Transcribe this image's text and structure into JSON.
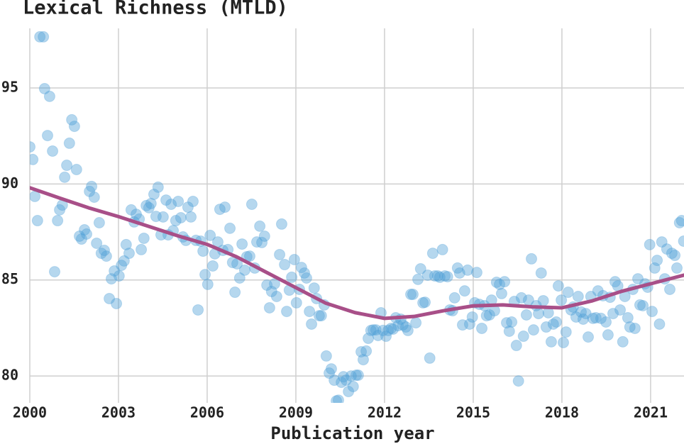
{
  "chart_data": {
    "type": "scatter",
    "title": "Lexical Richness (MTLD)",
    "xlabel": "Publication year",
    "x": [
      2000.0,
      2000.1,
      2000.17,
      2000.26,
      2000.34,
      2000.46,
      2000.5,
      2000.6,
      2000.67,
      2000.77,
      2000.84,
      2000.94,
      2001.01,
      2001.1,
      2001.18,
      2001.25,
      2001.34,
      2001.42,
      2001.51,
      2001.58,
      2001.68,
      2001.75,
      2001.85,
      2001.92,
      2002.02,
      2002.09,
      2002.18,
      2002.26,
      2002.35,
      2002.42,
      2002.52,
      2002.59,
      2002.69,
      2002.76,
      2002.86,
      2002.93,
      2003.02,
      2003.1,
      2003.19,
      2003.26,
      2003.36,
      2003.43,
      2003.53,
      2003.6,
      2003.7,
      2003.77,
      2003.86,
      2003.94,
      2004.03,
      2004.1,
      2004.2,
      2004.27,
      2004.34,
      2004.44,
      2004.51,
      2004.61,
      2004.68,
      2004.78,
      2004.85,
      2004.94,
      2005.02,
      2005.11,
      2005.18,
      2005.28,
      2005.35,
      2005.45,
      2005.52,
      2005.62,
      2005.69,
      2005.78,
      2005.86,
      2005.93,
      2006.02,
      2006.1,
      2006.19,
      2006.26,
      2006.36,
      2006.43,
      2006.53,
      2006.6,
      2006.7,
      2006.77,
      2006.86,
      2006.94,
      2007.01,
      2007.1,
      2007.18,
      2007.27,
      2007.34,
      2007.44,
      2007.51,
      2007.61,
      2007.68,
      2007.78,
      2007.85,
      2007.94,
      2008.02,
      2008.11,
      2008.18,
      2008.28,
      2008.35,
      2008.45,
      2008.52,
      2008.62,
      2008.69,
      2008.78,
      2008.86,
      2008.95,
      2009.02,
      2009.12,
      2009.19,
      2009.29,
      2009.36,
      2009.46,
      2009.53,
      2009.62,
      2009.7,
      2009.79,
      2009.86,
      2009.96,
      2010.03,
      2010.13,
      2010.2,
      2010.3,
      2010.37,
      2010.44,
      2010.54,
      2010.61,
      2010.7,
      2010.78,
      2010.87,
      2010.94,
      2011.04,
      2011.11,
      2011.21,
      2011.28,
      2011.38,
      2011.45,
      2011.54,
      2011.62,
      2011.71,
      2011.78,
      2011.88,
      2011.95,
      2012.05,
      2012.12,
      2012.22,
      2012.29,
      2012.38,
      2012.46,
      2012.55,
      2012.62,
      2012.72,
      2012.79,
      2012.89,
      2012.96,
      2013.06,
      2013.13,
      2013.22,
      2013.3,
      2013.37,
      2013.46,
      2013.53,
      2013.63,
      2013.7,
      2013.8,
      2013.87,
      2013.96,
      2014.04,
      2014.13,
      2014.21,
      2014.3,
      2014.37,
      2014.47,
      2014.54,
      2014.64,
      2014.71,
      2014.81,
      2014.88,
      2014.97,
      2015.05,
      2015.12,
      2015.21,
      2015.29,
      2015.38,
      2015.45,
      2015.55,
      2015.62,
      2015.72,
      2015.79,
      2015.89,
      2015.96,
      2016.06,
      2016.13,
      2016.22,
      2016.3,
      2016.39,
      2016.46,
      2016.53,
      2016.63,
      2016.7,
      2016.8,
      2016.87,
      2016.97,
      2017.04,
      2017.13,
      2017.21,
      2017.3,
      2017.37,
      2017.47,
      2017.54,
      2017.64,
      2017.71,
      2017.81,
      2017.88,
      2017.98,
      2018.05,
      2018.14,
      2018.21,
      2018.31,
      2018.38,
      2018.48,
      2018.55,
      2018.65,
      2018.72,
      2018.81,
      2018.89,
      2018.98,
      2019.05,
      2019.15,
      2019.22,
      2019.32,
      2019.39,
      2019.49,
      2019.56,
      2019.63,
      2019.73,
      2019.8,
      2019.89,
      2019.97,
      2020.06,
      2020.13,
      2020.23,
      2020.3,
      2020.4,
      2020.47,
      2020.57,
      2020.64,
      2020.74,
      2020.81,
      2020.9,
      2020.97,
      2021.05,
      2021.14,
      2021.22,
      2021.3,
      2021.38,
      2021.48,
      2021.55,
      2021.65,
      2021.72,
      2021.82,
      2021.89,
      2021.98,
      2022.05,
      2022.12
    ],
    "values": [
      91.93,
      91.27,
      89.35,
      88.09,
      97.66,
      97.66,
      94.96,
      92.52,
      94.56,
      91.71,
      85.43,
      88.09,
      88.65,
      88.9,
      90.35,
      90.97,
      92.12,
      93.34,
      93.0,
      90.75,
      87.28,
      87.13,
      87.61,
      87.39,
      89.61,
      89.87,
      89.31,
      86.91,
      87.98,
      86.39,
      86.54,
      86.24,
      84.03,
      85.06,
      85.47,
      83.77,
      85.21,
      85.76,
      85.99,
      86.84,
      86.39,
      88.65,
      88.02,
      88.42,
      88.17,
      86.58,
      87.17,
      88.87,
      88.76,
      88.98,
      89.46,
      88.31,
      89.83,
      87.35,
      88.28,
      89.16,
      87.35,
      88.94,
      87.57,
      88.09,
      89.09,
      88.24,
      87.24,
      87.06,
      88.79,
      88.28,
      89.09,
      87.06,
      83.44,
      87.02,
      86.5,
      85.28,
      84.77,
      87.32,
      85.73,
      86.36,
      86.98,
      88.68,
      86.54,
      88.79,
      86.58,
      87.69,
      85.91,
      84.36,
      85.84,
      85.1,
      86.87,
      85.51,
      86.21,
      86.24,
      88.94,
      85.62,
      86.98,
      87.8,
      86.95,
      87.28,
      84.73,
      83.55,
      84.4,
      84.8,
      84.14,
      86.32,
      87.91,
      85.8,
      83.36,
      84.47,
      85.14,
      86.06,
      83.81,
      84.51,
      85.65,
      85.36,
      85.1,
      83.36,
      82.7,
      84.58,
      84.03,
      83.14,
      83.14,
      83.7,
      81.04,
      80.15,
      80.37,
      79.78,
      78.7,
      78.74,
      79.67,
      79.96,
      79.78,
      79.19,
      80.0,
      79.45,
      80.04,
      80.04,
      81.26,
      80.85,
      81.3,
      81.96,
      82.37,
      82.4,
      82.4,
      82.11,
      83.29,
      82.37,
      82.07,
      82.37,
      82.48,
      82.44,
      83.03,
      82.62,
      82.96,
      82.66,
      82.55,
      82.37,
      84.25,
      84.25,
      82.77,
      85.03,
      85.58,
      83.81,
      83.84,
      85.25,
      80.93,
      86.39,
      85.21,
      85.21,
      85.14,
      86.58,
      85.21,
      85.17,
      83.44,
      83.4,
      84.07,
      85.62,
      85.36,
      82.66,
      84.43,
      85.51,
      82.7,
      83.07,
      83.81,
      85.39,
      83.73,
      82.48,
      83.66,
      83.14,
      83.18,
      83.95,
      83.4,
      84.88,
      84.77,
      84.29,
      84.91,
      82.77,
      82.33,
      82.81,
      83.88,
      81.59,
      79.74,
      84.07,
      82.07,
      83.18,
      83.95,
      86.1,
      82.4,
      83.66,
      83.25,
      85.36,
      83.92,
      82.55,
      83.29,
      81.78,
      82.7,
      82.81,
      84.69,
      83.95,
      81.74,
      82.29,
      84.36,
      83.44,
      83.59,
      83.07,
      84.14,
      83.33,
      82.96,
      83.25,
      82.03,
      84.14,
      83.0,
      83.03,
      84.43,
      83.0,
      84.18,
      82.81,
      82.14,
      84.1,
      83.25,
      84.91,
      84.69,
      83.44,
      81.78,
      84.14,
      83.03,
      82.55,
      84.51,
      82.48,
      85.06,
      83.7,
      83.66,
      84.8,
      84.62,
      86.84,
      83.36,
      85.62,
      86.02,
      82.7,
      86.98,
      85.06,
      86.61,
      84.51,
      86.39,
      86.28,
      85.62,
      87.98,
      88.09,
      87.02
    ],
    "color": "#4f9fd6",
    "trend": {
      "x": [
        2000,
        2001,
        2002,
        2003,
        2004,
        2005,
        2006,
        2007,
        2008,
        2009,
        2010,
        2011,
        2012,
        2013,
        2014,
        2015,
        2016,
        2017,
        2018,
        2019,
        2020,
        2021,
        2022.13
      ],
      "values": [
        89.8,
        89.27,
        88.75,
        88.3,
        87.8,
        87.3,
        86.85,
        86.2,
        85.4,
        84.6,
        83.8,
        83.3,
        83.0,
        83.1,
        83.4,
        83.65,
        83.7,
        83.6,
        83.55,
        83.9,
        84.4,
        84.8,
        85.25
      ],
      "color": "#a84f88"
    },
    "xlim": [
      2000,
      2022.13
    ],
    "ylim": [
      78.6,
      98.1
    ],
    "xticks": [
      2000,
      2003,
      2006,
      2009,
      2012,
      2015,
      2018,
      2021
    ],
    "yticks": [
      80,
      85,
      90,
      95
    ],
    "grid": true
  }
}
